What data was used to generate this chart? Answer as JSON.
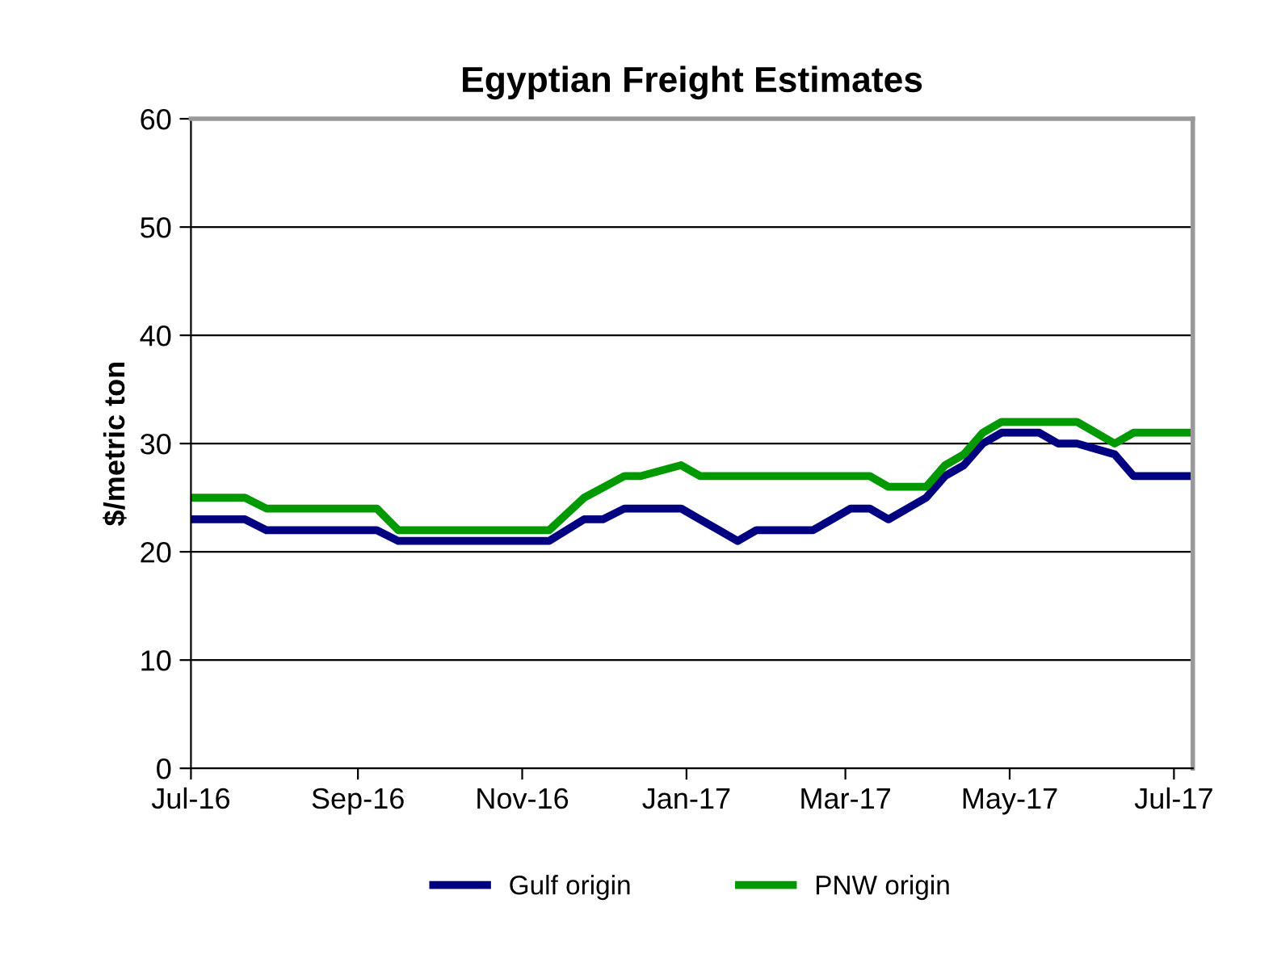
{
  "chart_data": {
    "type": "line",
    "title": "Egyptian Freight Estimates",
    "ylabel": "$/metric ton",
    "series": [
      {
        "name": "Gulf origin",
        "color": "#000080",
        "x": [
          "2016-07-01",
          "2016-07-21",
          "2016-07-29",
          "2016-09-08",
          "2016-09-16",
          "2016-11-11",
          "2016-11-24",
          "2016-12-01",
          "2016-12-09",
          "2016-12-30",
          "2017-01-06",
          "2017-01-13",
          "2017-01-20",
          "2017-01-27",
          "2017-02-17",
          "2017-02-24",
          "2017-03-03",
          "2017-03-10",
          "2017-03-17",
          "2017-03-31",
          "2017-04-07",
          "2017-04-14",
          "2017-04-21",
          "2017-04-28",
          "2017-05-12",
          "2017-05-19",
          "2017-05-26",
          "2017-06-09",
          "2017-06-16",
          "2017-07-07"
        ],
        "values": [
          23,
          23,
          22,
          22,
          21,
          21,
          23,
          23,
          24,
          24,
          23,
          22,
          21,
          22,
          22,
          23,
          24,
          24,
          23,
          25,
          27,
          28,
          30,
          31,
          31,
          30,
          30,
          29,
          27,
          27
        ]
      },
      {
        "name": "PNW origin",
        "color": "#009900",
        "x": [
          "2016-07-01",
          "2016-07-21",
          "2016-07-29",
          "2016-09-08",
          "2016-09-16",
          "2016-11-11",
          "2016-11-24",
          "2016-12-09",
          "2016-12-15",
          "2016-12-30",
          "2017-01-06",
          "2017-03-10",
          "2017-03-17",
          "2017-03-31",
          "2017-04-07",
          "2017-04-14",
          "2017-04-21",
          "2017-04-28",
          "2017-05-26",
          "2017-06-09",
          "2017-06-16",
          "2017-07-07"
        ],
        "values": [
          25,
          25,
          24,
          24,
          22,
          22,
          25,
          27,
          27,
          28,
          27,
          27,
          26,
          26,
          28,
          29,
          31,
          32,
          32,
          30,
          31,
          31
        ]
      }
    ],
    "xlim": [
      "2016-07-01",
      "2017-07-08"
    ],
    "xticks": [
      {
        "value": "2016-07-01",
        "label": "Jul-16"
      },
      {
        "value": "2016-09-01",
        "label": "Sep-16"
      },
      {
        "value": "2016-11-01",
        "label": "Nov-16"
      },
      {
        "value": "2017-01-01",
        "label": "Jan-17"
      },
      {
        "value": "2017-03-01",
        "label": "Mar-17"
      },
      {
        "value": "2017-05-01",
        "label": "May-17"
      },
      {
        "value": "2017-07-01",
        "label": "Jul-17"
      }
    ],
    "ylim": [
      0,
      60
    ],
    "yticks": [
      0,
      10,
      20,
      30,
      40,
      50,
      60
    ],
    "grid": "y",
    "legend": "bottom",
    "line_style": "solid"
  }
}
